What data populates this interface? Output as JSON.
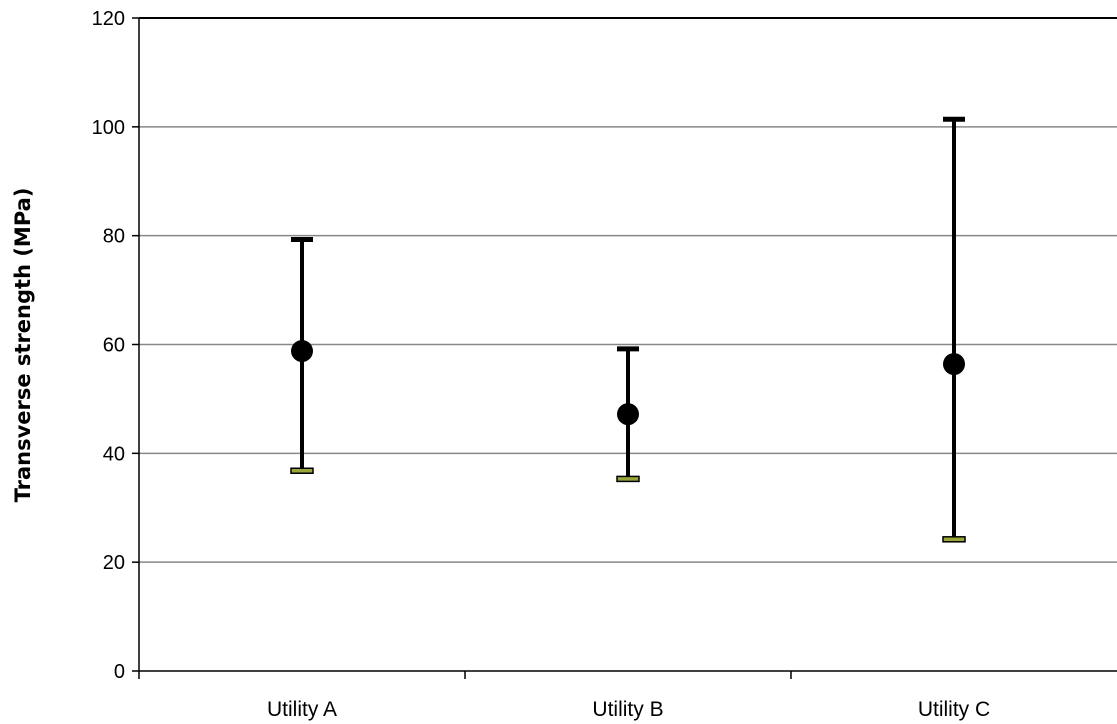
{
  "chart_data": {
    "type": "scatter",
    "title": "",
    "xlabel": "",
    "ylabel": "Transverse strength (MPa)",
    "ylim": [
      0,
      120
    ],
    "yticks": [
      "0",
      "20",
      "40",
      "60",
      "80",
      "100",
      "120"
    ],
    "grid": true,
    "categories": [
      "Utility A",
      "Utility B",
      "Utility C"
    ],
    "values": [
      58.8,
      47.2,
      56.4
    ],
    "error_high": [
      79.3,
      59.2,
      101.4
    ],
    "error_low": [
      36.8,
      35.3,
      24.2
    ],
    "colors": {
      "marker": "#000000",
      "gridline": "#888888",
      "axis": "#000000",
      "cap_low": "#9aa53a"
    }
  }
}
